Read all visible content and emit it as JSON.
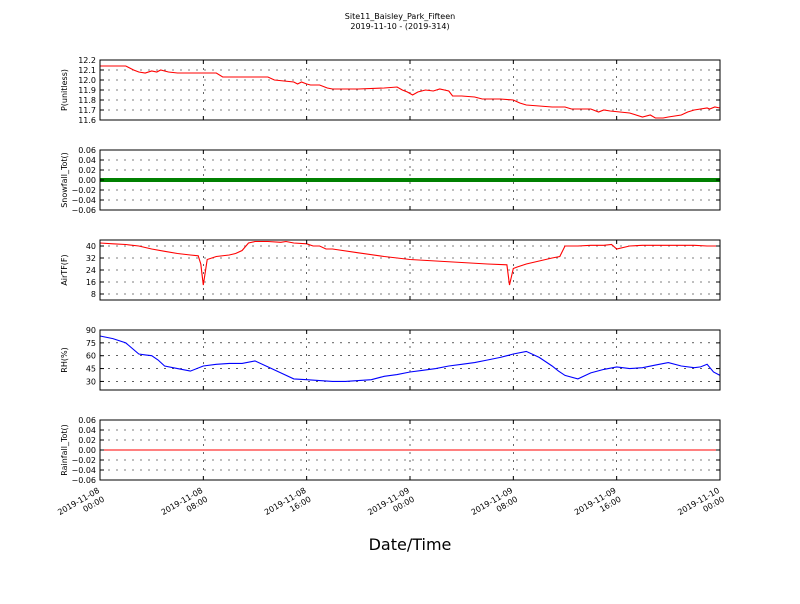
{
  "figure": {
    "title": "Site11_Baisley_Park_Fifteen",
    "subtitle": "2019-11-10 - (2019-314)",
    "xlabel": "Date/Time"
  },
  "chart_data": [
    {
      "type": "line",
      "ylabel": "P(unitless)",
      "color": "#ff0000",
      "ylim": [
        11.6,
        12.2
      ],
      "yticks": [
        "11.6",
        "11.7",
        "11.8",
        "11.9",
        "12.0",
        "12.1",
        "12.2"
      ],
      "ytick_values": [
        11.6,
        11.7,
        11.8,
        11.9,
        12.0,
        12.1,
        12.2
      ],
      "grid": true,
      "x": [
        0,
        2,
        2.6,
        3,
        3.5,
        4,
        4.4,
        4.7,
        5,
        5.3,
        6,
        9,
        9.5,
        13,
        13.5,
        15,
        15.3,
        15.6,
        16,
        16.3,
        17,
        17.6,
        18,
        20,
        22,
        23,
        23.4,
        23.8,
        24.2,
        24.6,
        25.2,
        25.8,
        26.3,
        27,
        27.3,
        28,
        29,
        29.6,
        30,
        31,
        32,
        32.5,
        33,
        34,
        35,
        36,
        36.5,
        37,
        38,
        38.6,
        39,
        39.5,
        41,
        42,
        42.6,
        43,
        43.6,
        44,
        45,
        45.5,
        46,
        47,
        47.2,
        47.6,
        48
      ],
      "y": [
        12.14,
        12.14,
        12.1,
        12.08,
        12.07,
        12.09,
        12.08,
        12.1,
        12.09,
        12.08,
        12.07,
        12.07,
        12.03,
        12.03,
        12.0,
        11.98,
        11.96,
        11.98,
        11.96,
        11.95,
        11.95,
        11.92,
        11.91,
        11.91,
        11.92,
        11.93,
        11.9,
        11.88,
        11.85,
        11.88,
        11.9,
        11.89,
        11.91,
        11.89,
        11.84,
        11.84,
        11.83,
        11.81,
        11.81,
        11.81,
        11.8,
        11.77,
        11.75,
        11.74,
        11.73,
        11.73,
        11.71,
        11.71,
        11.71,
        11.68,
        11.7,
        11.69,
        11.67,
        11.63,
        11.65,
        11.62,
        11.62,
        11.63,
        11.65,
        11.68,
        11.7,
        11.72,
        11.71,
        11.73,
        11.72
      ]
    },
    {
      "type": "line",
      "ylabel": "Snowfall_Tot()",
      "color": "#008000",
      "marker": "dot",
      "ylim": [
        -0.06,
        0.06
      ],
      "yticks": [
        "−0.06",
        "−0.04",
        "−0.02",
        "0.00",
        "0.02",
        "0.04",
        "0.06"
      ],
      "ytick_values": [
        -0.06,
        -0.04,
        -0.02,
        0.0,
        0.02,
        0.04,
        0.06
      ],
      "grid": true,
      "x": [
        0,
        48
      ],
      "y": [
        0,
        0
      ]
    },
    {
      "type": "line",
      "ylabel": "AirTF(F)",
      "color": "#ff0000",
      "ylim": [
        4,
        44
      ],
      "yticks": [
        "8",
        "16",
        "24",
        "32",
        "40"
      ],
      "ytick_values": [
        8,
        16,
        24,
        32,
        40
      ],
      "grid": true,
      "x": [
        0,
        1,
        2,
        3,
        4,
        5,
        6,
        7,
        7.6,
        7.8,
        8.0,
        8.3,
        9,
        10,
        10.5,
        11,
        11.5,
        12,
        13,
        14,
        14.4,
        15,
        16,
        16.5,
        17,
        17.5,
        18,
        20,
        22,
        24,
        26,
        28,
        30,
        31.5,
        31.7,
        32,
        32.3,
        33,
        34,
        35,
        35.6,
        36,
        37,
        38,
        39,
        39.6,
        40,
        41,
        42,
        43,
        44,
        45,
        46,
        47,
        48
      ],
      "y": [
        42,
        41.5,
        41,
        40,
        38,
        36.5,
        35,
        34,
        33.5,
        28,
        14,
        31,
        33,
        34,
        35,
        37,
        42,
        43,
        43,
        42.5,
        43,
        42,
        41.5,
        40,
        40,
        38,
        38,
        35.5,
        33,
        31,
        30,
        29,
        28,
        27.5,
        14,
        25,
        26,
        28,
        30,
        32,
        33,
        40,
        40,
        40.5,
        40.5,
        41,
        38,
        40,
        40.5,
        40.5,
        40.5,
        40.5,
        40.5,
        40,
        40
      ]
    },
    {
      "type": "line",
      "ylabel": "RH(%)",
      "color": "#0000ff",
      "ylim": [
        20,
        90
      ],
      "yticks": [
        "30",
        "45",
        "60",
        "75",
        "90"
      ],
      "ytick_values": [
        30,
        45,
        60,
        75,
        90
      ],
      "grid": true,
      "x": [
        0,
        1,
        2,
        3,
        3.5,
        4,
        4.5,
        5,
        6,
        7,
        8,
        9,
        10,
        11,
        12,
        13,
        14,
        15,
        16,
        17,
        18,
        19,
        20,
        21,
        22,
        23,
        24,
        25,
        26,
        27,
        28,
        29,
        30,
        31,
        31.5,
        32,
        33,
        34,
        35,
        35.5,
        36,
        37,
        38,
        39,
        40,
        41,
        42,
        43,
        44,
        45,
        46,
        46.5,
        47,
        47.5,
        48
      ],
      "y": [
        83,
        80,
        75,
        62,
        61,
        60,
        55,
        48,
        45,
        42,
        48,
        50,
        51,
        51,
        54,
        47,
        40,
        33,
        32,
        31,
        30,
        30,
        31,
        32,
        36,
        38,
        41,
        43,
        45,
        48,
        50,
        52,
        55,
        58,
        60,
        62,
        65,
        58,
        48,
        42,
        37,
        33,
        40,
        44,
        47,
        45,
        46,
        49,
        52,
        48,
        46,
        47,
        50,
        41,
        37
      ]
    },
    {
      "type": "line",
      "ylabel": "Rainfall_Tot()",
      "color": "#ff0000",
      "ylim": [
        -0.06,
        0.06
      ],
      "yticks": [
        "−0.06",
        "−0.04",
        "−0.02",
        "0.00",
        "0.02",
        "0.04",
        "0.06"
      ],
      "ytick_values": [
        -0.06,
        -0.04,
        -0.02,
        0.0,
        0.02,
        0.04,
        0.06
      ],
      "grid": true,
      "x": [
        0,
        48
      ],
      "y": [
        0,
        0
      ]
    }
  ],
  "xaxis": {
    "range_hours": [
      0,
      48
    ],
    "tick_hours": [
      0,
      8,
      16,
      24,
      32,
      40,
      48
    ],
    "tick_labels": [
      [
        "2019-11-08",
        "00:00"
      ],
      [
        "2019-11-08",
        "08:00"
      ],
      [
        "2019-11-08",
        "16:00"
      ],
      [
        "2019-11-09",
        "00:00"
      ],
      [
        "2019-11-09",
        "08:00"
      ],
      [
        "2019-11-09",
        "16:00"
      ],
      [
        "2019-11-10",
        "00:00"
      ]
    ]
  }
}
